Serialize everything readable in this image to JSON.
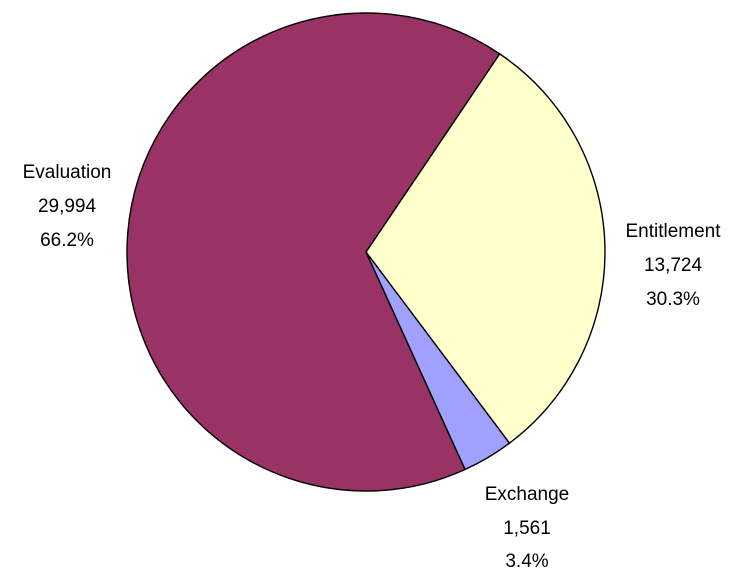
{
  "chart_data": {
    "type": "pie",
    "title": "",
    "start_angle_deg": 34,
    "direction": "clockwise",
    "legend": "none",
    "slices": [
      {
        "name": "Entitlement",
        "value": 13724,
        "value_label": "13,724",
        "percent_label": "30.3%",
        "color": "#FFFFCC"
      },
      {
        "name": "Exchange",
        "value": 1561,
        "value_label": "1,561",
        "percent_label": "3.4%",
        "color": "#A0A0FF"
      },
      {
        "name": "Evaluation",
        "value": 29994,
        "value_label": "29,994",
        "percent_label": "66.2%",
        "color": "#993366"
      }
    ]
  }
}
